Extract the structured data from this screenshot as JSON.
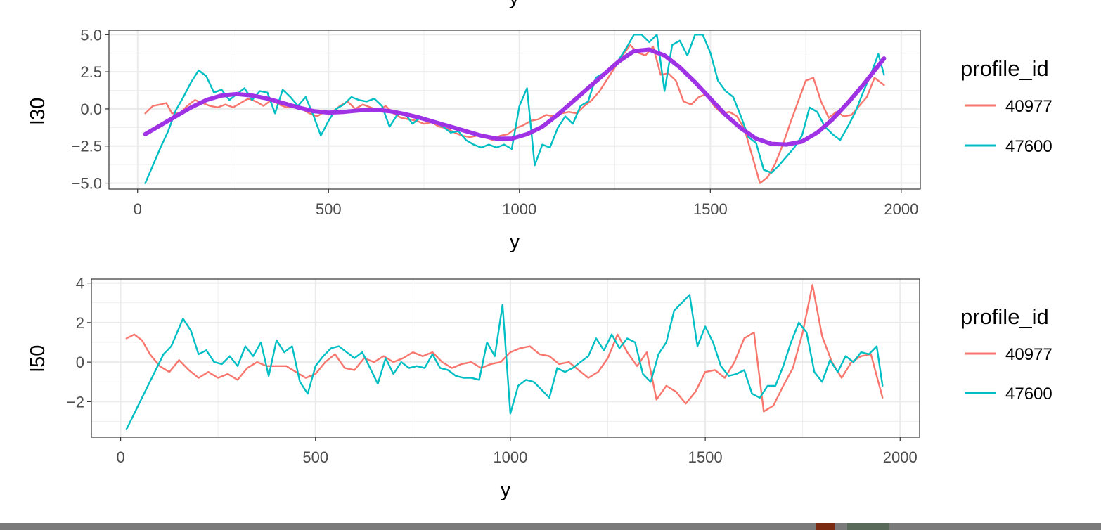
{
  "colors": {
    "series_40977": "#F8766D",
    "series_47600": "#00BFC4",
    "smooth": "#A032E6",
    "grid": "#EBEBEB",
    "panel_border": "#333333",
    "background": "#FFFFFF"
  },
  "chart_data": [
    {
      "type": "line",
      "title": "",
      "xlabel": "y",
      "ylabel": "l30",
      "xlim": [
        -75,
        2050
      ],
      "ylim": [
        -5.4,
        5.3
      ],
      "x_ticks": [
        0,
        500,
        1000,
        1500,
        2000
      ],
      "x_tick_labels": [
        "0",
        "500",
        "1000",
        "1500",
        "2000"
      ],
      "y_ticks": [
        -5.0,
        -2.5,
        0.0,
        2.5,
        5.0
      ],
      "y_tick_labels": [
        "−5.0",
        "−2.5",
        "0.0",
        "2.5",
        "5.0"
      ],
      "grid": true,
      "legend_title": "profile_id",
      "legend_position": "right",
      "series": [
        {
          "name": "40977",
          "color": "#F8766D",
          "x": [
            20,
            40,
            60,
            75,
            90,
            110,
            130,
            150,
            170,
            190,
            210,
            230,
            250,
            270,
            290,
            310,
            330,
            350,
            370,
            390,
            410,
            430,
            450,
            470,
            490,
            510,
            530,
            550,
            570,
            590,
            610,
            630,
            650,
            670,
            690,
            710,
            730,
            750,
            770,
            790,
            810,
            830,
            850,
            870,
            890,
            910,
            930,
            950,
            970,
            990,
            1010,
            1030,
            1050,
            1070,
            1090,
            1110,
            1130,
            1150,
            1170,
            1190,
            1210,
            1230,
            1250,
            1270,
            1290,
            1310,
            1330,
            1350,
            1370,
            1390,
            1410,
            1430,
            1450,
            1470,
            1490,
            1510,
            1530,
            1550,
            1570,
            1590,
            1610,
            1630,
            1650,
            1670,
            1690,
            1710,
            1730,
            1750,
            1770,
            1790,
            1810,
            1830,
            1850,
            1870,
            1890,
            1910,
            1930,
            1955
          ],
          "values": [
            -0.3,
            0.2,
            0.3,
            0.4,
            -0.3,
            -0.3,
            0.2,
            0.6,
            0.4,
            0.2,
            0.1,
            0.3,
            0.1,
            0.4,
            0.7,
            0.5,
            0.2,
            0.6,
            0.3,
            0.1,
            0.2,
            0.0,
            -0.3,
            -0.5,
            -0.2,
            -0.2,
            0.2,
            0.5,
            0.0,
            0.3,
            0.1,
            -0.1,
            0.2,
            -0.3,
            -0.6,
            -0.7,
            -0.8,
            -1.0,
            -0.9,
            -1.2,
            -1.3,
            -1.6,
            -1.8,
            -1.9,
            -1.8,
            -1.9,
            -2.1,
            -1.8,
            -1.7,
            -1.3,
            -1.1,
            -0.8,
            -0.7,
            -0.4,
            -0.5,
            -0.3,
            -0.2,
            -0.3,
            0.2,
            0.6,
            1.2,
            2.0,
            2.8,
            3.6,
            4.3,
            3.8,
            3.6,
            4.2,
            2.3,
            2.4,
            1.9,
            0.5,
            0.3,
            0.8,
            1.0,
            0.2,
            -0.3,
            -0.2,
            -0.5,
            -1.4,
            -3.2,
            -5.0,
            -4.6,
            -3.7,
            -2.4,
            -0.9,
            0.5,
            1.9,
            2.1,
            0.5,
            -0.6,
            -0.2,
            -0.5,
            -0.4,
            0.2,
            0.8,
            2.1,
            1.6
          ]
        },
        {
          "name": "47600",
          "color": "#00BFC4",
          "x": [
            20,
            40,
            60,
            80,
            100,
            120,
            140,
            160,
            180,
            200,
            220,
            240,
            260,
            280,
            300,
            320,
            340,
            360,
            380,
            400,
            420,
            440,
            460,
            480,
            500,
            520,
            540,
            560,
            580,
            600,
            620,
            640,
            660,
            680,
            700,
            720,
            740,
            760,
            780,
            800,
            820,
            840,
            860,
            880,
            900,
            920,
            940,
            960,
            980,
            1000,
            1020,
            1040,
            1060,
            1080,
            1100,
            1120,
            1140,
            1160,
            1180,
            1200,
            1220,
            1240,
            1260,
            1280,
            1300,
            1320,
            1340,
            1360,
            1380,
            1400,
            1420,
            1440,
            1460,
            1480,
            1500,
            1520,
            1540,
            1560,
            1580,
            1600,
            1620,
            1640,
            1660,
            1680,
            1700,
            1720,
            1740,
            1760,
            1780,
            1800,
            1820,
            1840,
            1860,
            1880,
            1900,
            1920,
            1940,
            1955
          ],
          "values": [
            -5.0,
            -3.8,
            -2.6,
            -1.5,
            -0.1,
            0.8,
            1.8,
            2.6,
            2.2,
            1.1,
            1.3,
            0.6,
            1.0,
            1.4,
            0.6,
            1.2,
            1.1,
            -0.3,
            1.3,
            0.8,
            0.2,
            0.8,
            -0.4,
            -1.8,
            -0.8,
            0.0,
            0.3,
            0.8,
            0.6,
            0.5,
            0.7,
            0.2,
            -1.2,
            -0.4,
            -0.3,
            -1.0,
            -0.6,
            -0.8,
            -0.9,
            -1.2,
            -1.6,
            -1.5,
            -2.1,
            -2.4,
            -2.6,
            -2.4,
            -2.6,
            -2.4,
            -2.7,
            0.2,
            1.4,
            -3.8,
            -2.4,
            -2.6,
            -1.3,
            -0.5,
            -1.0,
            0.2,
            0.5,
            2.1,
            2.4,
            2.8,
            3.3,
            4.1,
            5.0,
            5.0,
            4.5,
            5.0,
            1.2,
            4.3,
            4.6,
            3.6,
            5.0,
            5.0,
            3.8,
            1.9,
            1.2,
            0.8,
            -0.5,
            -1.9,
            -2.3,
            -4.1,
            -4.3,
            -3.8,
            -3.2,
            -2.6,
            -1.8,
            0.1,
            -0.2,
            -1.2,
            -1.7,
            -2.1,
            -1.2,
            -0.2,
            1.1,
            2.3,
            3.7,
            2.3
          ]
        },
        {
          "name": "",
          "color": "#A032E6",
          "x": [
            20,
            60,
            100,
            140,
            180,
            220,
            260,
            300,
            340,
            380,
            420,
            460,
            500,
            540,
            580,
            620,
            660,
            700,
            740,
            780,
            820,
            860,
            900,
            940,
            980,
            1020,
            1060,
            1100,
            1140,
            1180,
            1220,
            1260,
            1300,
            1340,
            1380,
            1420,
            1460,
            1500,
            1540,
            1580,
            1620,
            1660,
            1700,
            1740,
            1780,
            1820,
            1860,
            1900,
            1955
          ],
          "values": [
            -1.7,
            -1.1,
            -0.5,
            0.1,
            0.6,
            0.9,
            1.0,
            0.9,
            0.7,
            0.4,
            0.1,
            -0.15,
            -0.25,
            -0.2,
            -0.1,
            -0.05,
            -0.15,
            -0.35,
            -0.6,
            -0.9,
            -1.2,
            -1.5,
            -1.8,
            -2.0,
            -2.0,
            -1.7,
            -1.2,
            -0.4,
            0.5,
            1.4,
            2.3,
            3.2,
            3.9,
            4.0,
            3.6,
            2.8,
            1.8,
            0.7,
            -0.4,
            -1.3,
            -2.0,
            -2.35,
            -2.4,
            -2.2,
            -1.6,
            -0.7,
            0.4,
            1.6,
            3.4
          ]
        }
      ]
    },
    {
      "type": "line",
      "title": "",
      "xlabel": "y",
      "ylabel": "l50",
      "xlim": [
        -75,
        2050
      ],
      "ylim": [
        -3.8,
        4.2
      ],
      "x_ticks": [
        0,
        500,
        1000,
        1500,
        2000
      ],
      "x_tick_labels": [
        "0",
        "500",
        "1000",
        "1500",
        "2000"
      ],
      "y_ticks": [
        -2,
        0,
        2,
        4
      ],
      "y_tick_labels": [
        "−2",
        "0",
        "2",
        "4"
      ],
      "grid": true,
      "legend_title": "profile_id",
      "legend_position": "right",
      "series": [
        {
          "name": "40977",
          "color": "#F8766D",
          "x": [
            15,
            35,
            55,
            75,
            100,
            125,
            150,
            175,
            200,
            225,
            250,
            275,
            300,
            325,
            350,
            375,
            400,
            425,
            450,
            475,
            500,
            525,
            550,
            575,
            600,
            625,
            650,
            675,
            700,
            725,
            750,
            775,
            800,
            825,
            850,
            875,
            900,
            925,
            950,
            975,
            1000,
            1025,
            1050,
            1075,
            1100,
            1125,
            1150,
            1175,
            1200,
            1225,
            1250,
            1275,
            1300,
            1325,
            1350,
            1375,
            1400,
            1425,
            1450,
            1475,
            1500,
            1525,
            1550,
            1575,
            1600,
            1625,
            1650,
            1675,
            1700,
            1725,
            1750,
            1775,
            1800,
            1825,
            1850,
            1875,
            1900,
            1925,
            1955
          ],
          "values": [
            1.2,
            1.4,
            1.1,
            0.4,
            -0.2,
            -0.5,
            0.1,
            -0.4,
            -0.8,
            -0.5,
            -0.8,
            -0.6,
            -0.9,
            -0.3,
            0.0,
            -0.2,
            -0.2,
            -0.2,
            -0.5,
            -0.8,
            -0.6,
            0.0,
            0.4,
            -0.3,
            -0.4,
            0.2,
            0.0,
            0.3,
            0.0,
            0.2,
            0.5,
            0.3,
            0.5,
            0.0,
            -0.3,
            -0.1,
            0.0,
            -0.3,
            -0.1,
            0.0,
            0.5,
            0.7,
            0.8,
            0.4,
            0.3,
            -0.1,
            0.0,
            -0.4,
            -0.8,
            -0.5,
            0.2,
            1.4,
            0.5,
            -0.2,
            0.5,
            -1.9,
            -1.2,
            -1.5,
            -2.1,
            -1.5,
            -0.5,
            -0.4,
            -0.8,
            0.0,
            1.2,
            1.5,
            -2.5,
            -2.2,
            -1.2,
            -0.3,
            1.5,
            3.9,
            1.3,
            0.0,
            -0.8,
            0.0,
            0.3,
            0.4,
            -1.8
          ]
        },
        {
          "name": "47600",
          "color": "#00BFC4",
          "x": [
            15,
            30,
            50,
            70,
            90,
            110,
            130,
            160,
            180,
            200,
            220,
            240,
            260,
            280,
            300,
            320,
            340,
            360,
            380,
            400,
            420,
            440,
            460,
            480,
            500,
            520,
            540,
            560,
            580,
            600,
            620,
            640,
            660,
            680,
            700,
            720,
            740,
            760,
            780,
            800,
            820,
            840,
            860,
            880,
            900,
            920,
            940,
            960,
            980,
            1000,
            1020,
            1040,
            1060,
            1080,
            1100,
            1120,
            1140,
            1160,
            1180,
            1200,
            1220,
            1240,
            1260,
            1280,
            1300,
            1320,
            1340,
            1360,
            1380,
            1400,
            1420,
            1440,
            1460,
            1480,
            1500,
            1520,
            1540,
            1560,
            1580,
            1600,
            1620,
            1640,
            1660,
            1680,
            1700,
            1720,
            1740,
            1760,
            1780,
            1800,
            1820,
            1840,
            1860,
            1880,
            1900,
            1920,
            1940,
            1955
          ],
          "values": [
            -3.4,
            -2.8,
            -2.0,
            -1.2,
            -0.4,
            0.4,
            0.8,
            2.2,
            1.6,
            0.4,
            0.6,
            0.0,
            -0.1,
            0.3,
            -0.2,
            0.8,
            0.3,
            1.0,
            -0.7,
            1.1,
            0.5,
            0.8,
            -1.0,
            -1.6,
            -0.2,
            0.3,
            0.7,
            0.8,
            0.5,
            0.2,
            0.5,
            -0.3,
            -1.1,
            0.2,
            -0.6,
            0.0,
            -0.3,
            -0.2,
            -0.3,
            0.4,
            -0.3,
            -0.4,
            -0.7,
            -0.8,
            -0.8,
            -0.9,
            1.0,
            0.3,
            2.9,
            -2.6,
            -1.2,
            -0.9,
            -1.0,
            -1.4,
            -1.8,
            -0.3,
            -0.5,
            -0.3,
            0.0,
            0.3,
            1.2,
            0.6,
            1.4,
            0.7,
            1.2,
            1.0,
            -0.6,
            -1.0,
            0.4,
            1.0,
            2.6,
            3.0,
            3.4,
            0.8,
            1.8,
            1.0,
            -0.2,
            -0.7,
            -0.6,
            -0.4,
            -1.6,
            -1.8,
            -1.2,
            -1.2,
            -0.2,
            1.0,
            2.0,
            1.5,
            -0.5,
            -1.0,
            0.1,
            -0.5,
            0.3,
            0.0,
            0.5,
            0.4,
            0.8,
            -1.2
          ]
        }
      ]
    }
  ],
  "legends": [
    {
      "title": "profile_id",
      "items": [
        "40977",
        "47600"
      ]
    },
    {
      "title": "profile_id",
      "items": [
        "40977",
        "47600"
      ]
    }
  ],
  "top_cut_label": "y"
}
